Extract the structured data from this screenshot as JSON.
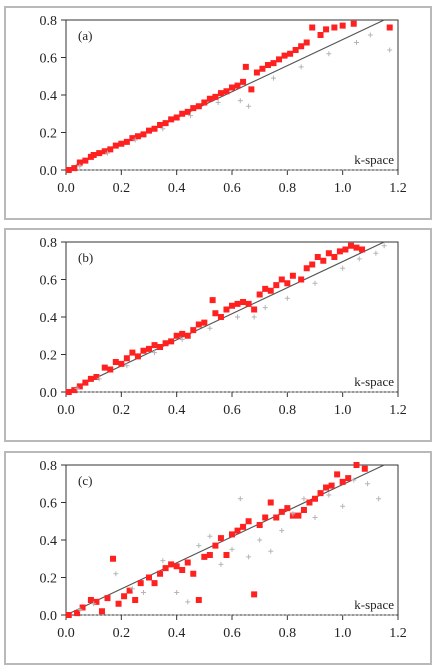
{
  "chart_data": [
    {
      "type": "scatter",
      "panel_label": "(a)",
      "annotation": "k-space",
      "xlim": [
        0.0,
        1.2
      ],
      "ylim": [
        0.0,
        0.8
      ],
      "xticks": [
        0.0,
        0.2,
        0.4,
        0.6,
        0.8,
        1.0,
        1.2
      ],
      "yticks": [
        0.0,
        0.2,
        0.4,
        0.6,
        0.8
      ],
      "reference_line": {
        "x": [
          0.0,
          1.15
        ],
        "y": [
          0.0,
          0.8
        ]
      },
      "colors": {
        "red": "#ff2020",
        "gray": "#b5b5b5",
        "line": "#555555"
      },
      "series": [
        {
          "color": "red",
          "points": [
            [
              0.01,
              0.0
            ],
            [
              0.03,
              0.01
            ],
            [
              0.05,
              0.04
            ],
            [
              0.07,
              0.05
            ],
            [
              0.09,
              0.07
            ],
            [
              0.1,
              0.08
            ],
            [
              0.12,
              0.09
            ],
            [
              0.14,
              0.1
            ],
            [
              0.16,
              0.11
            ],
            [
              0.18,
              0.13
            ],
            [
              0.2,
              0.14
            ],
            [
              0.22,
              0.15
            ],
            [
              0.24,
              0.17
            ],
            [
              0.26,
              0.18
            ],
            [
              0.28,
              0.19
            ],
            [
              0.3,
              0.21
            ],
            [
              0.32,
              0.22
            ],
            [
              0.34,
              0.24
            ],
            [
              0.36,
              0.25
            ],
            [
              0.38,
              0.27
            ],
            [
              0.4,
              0.28
            ],
            [
              0.42,
              0.3
            ],
            [
              0.44,
              0.31
            ],
            [
              0.46,
              0.33
            ],
            [
              0.48,
              0.34
            ],
            [
              0.5,
              0.36
            ],
            [
              0.52,
              0.38
            ],
            [
              0.54,
              0.39
            ],
            [
              0.56,
              0.41
            ],
            [
              0.58,
              0.42
            ],
            [
              0.6,
              0.44
            ],
            [
              0.62,
              0.45
            ],
            [
              0.64,
              0.47
            ],
            [
              0.65,
              0.55
            ],
            [
              0.67,
              0.43
            ],
            [
              0.69,
              0.52
            ],
            [
              0.71,
              0.54
            ],
            [
              0.73,
              0.56
            ],
            [
              0.75,
              0.57
            ],
            [
              0.77,
              0.59
            ],
            [
              0.79,
              0.61
            ],
            [
              0.81,
              0.62
            ],
            [
              0.83,
              0.64
            ],
            [
              0.85,
              0.66
            ],
            [
              0.87,
              0.68
            ],
            [
              0.89,
              0.76
            ],
            [
              0.92,
              0.72
            ],
            [
              0.94,
              0.75
            ],
            [
              0.97,
              0.76
            ],
            [
              1.0,
              0.77
            ],
            [
              1.04,
              0.78
            ],
            [
              1.17,
              0.76
            ]
          ]
        },
        {
          "color": "gray",
          "points": [
            [
              0.05,
              0.02
            ],
            [
              0.15,
              0.09
            ],
            [
              0.25,
              0.16
            ],
            [
              0.35,
              0.22
            ],
            [
              0.45,
              0.29
            ],
            [
              0.55,
              0.36
            ],
            [
              0.63,
              0.37
            ],
            [
              0.66,
              0.34
            ],
            [
              0.75,
              0.49
            ],
            [
              0.85,
              0.55
            ],
            [
              0.95,
              0.62
            ],
            [
              1.05,
              0.68
            ],
            [
              1.1,
              0.72
            ],
            [
              1.17,
              0.64
            ]
          ]
        }
      ]
    },
    {
      "type": "scatter",
      "panel_label": "(b)",
      "annotation": "k-space",
      "xlim": [
        0.0,
        1.2
      ],
      "ylim": [
        0.0,
        0.8
      ],
      "xticks": [
        0.0,
        0.2,
        0.4,
        0.6,
        0.8,
        1.0,
        1.2
      ],
      "yticks": [
        0.0,
        0.2,
        0.4,
        0.6,
        0.8
      ],
      "reference_line": {
        "x": [
          0.0,
          1.15
        ],
        "y": [
          0.0,
          0.8
        ]
      },
      "colors": {
        "red": "#ff2020",
        "gray": "#b5b5b5",
        "line": "#555555"
      },
      "series": [
        {
          "color": "red",
          "points": [
            [
              0.01,
              0.0
            ],
            [
              0.03,
              0.01
            ],
            [
              0.05,
              0.03
            ],
            [
              0.07,
              0.05
            ],
            [
              0.09,
              0.07
            ],
            [
              0.11,
              0.08
            ],
            [
              0.14,
              0.13
            ],
            [
              0.16,
              0.12
            ],
            [
              0.18,
              0.16
            ],
            [
              0.2,
              0.15
            ],
            [
              0.22,
              0.18
            ],
            [
              0.24,
              0.21
            ],
            [
              0.26,
              0.19
            ],
            [
              0.28,
              0.22
            ],
            [
              0.3,
              0.23
            ],
            [
              0.32,
              0.25
            ],
            [
              0.34,
              0.24
            ],
            [
              0.36,
              0.26
            ],
            [
              0.38,
              0.27
            ],
            [
              0.4,
              0.3
            ],
            [
              0.42,
              0.31
            ],
            [
              0.44,
              0.3
            ],
            [
              0.46,
              0.33
            ],
            [
              0.48,
              0.36
            ],
            [
              0.5,
              0.37
            ],
            [
              0.53,
              0.49
            ],
            [
              0.54,
              0.42
            ],
            [
              0.56,
              0.4
            ],
            [
              0.58,
              0.44
            ],
            [
              0.6,
              0.46
            ],
            [
              0.62,
              0.47
            ],
            [
              0.64,
              0.48
            ],
            [
              0.66,
              0.47
            ],
            [
              0.68,
              0.44
            ],
            [
              0.7,
              0.52
            ],
            [
              0.72,
              0.55
            ],
            [
              0.74,
              0.54
            ],
            [
              0.76,
              0.57
            ],
            [
              0.78,
              0.6
            ],
            [
              0.8,
              0.58
            ],
            [
              0.82,
              0.62
            ],
            [
              0.85,
              0.6
            ],
            [
              0.87,
              0.66
            ],
            [
              0.89,
              0.68
            ],
            [
              0.91,
              0.72
            ],
            [
              0.93,
              0.7
            ],
            [
              0.95,
              0.74
            ],
            [
              0.97,
              0.72
            ],
            [
              0.99,
              0.75
            ],
            [
              1.01,
              0.76
            ],
            [
              1.03,
              0.78
            ],
            [
              1.05,
              0.77
            ],
            [
              1.07,
              0.76
            ]
          ]
        },
        {
          "color": "gray",
          "points": [
            [
              0.04,
              0.02
            ],
            [
              0.12,
              0.07
            ],
            [
              0.22,
              0.14
            ],
            [
              0.32,
              0.21
            ],
            [
              0.42,
              0.28
            ],
            [
              0.52,
              0.34
            ],
            [
              0.62,
              0.4
            ],
            [
              0.68,
              0.4
            ],
            [
              0.72,
              0.45
            ],
            [
              0.8,
              0.5
            ],
            [
              0.9,
              0.58
            ],
            [
              1.0,
              0.66
            ],
            [
              1.06,
              0.71
            ],
            [
              1.12,
              0.74
            ],
            [
              1.15,
              0.78
            ]
          ]
        }
      ]
    },
    {
      "type": "scatter",
      "panel_label": "(c)",
      "annotation": "k-space",
      "xlim": [
        0.0,
        1.2
      ],
      "ylim": [
        0.0,
        0.8
      ],
      "xticks": [
        0.0,
        0.2,
        0.4,
        0.6,
        0.8,
        1.0,
        1.2
      ],
      "yticks": [
        0.0,
        0.2,
        0.4,
        0.6,
        0.8
      ],
      "reference_line": {
        "x": [
          0.0,
          1.15
        ],
        "y": [
          0.0,
          0.8
        ]
      },
      "colors": {
        "red": "#ff2020",
        "gray": "#b5b5b5",
        "line": "#555555"
      },
      "series": [
        {
          "color": "red",
          "points": [
            [
              0.01,
              0.0
            ],
            [
              0.04,
              0.01
            ],
            [
              0.06,
              0.04
            ],
            [
              0.09,
              0.08
            ],
            [
              0.11,
              0.07
            ],
            [
              0.13,
              0.02
            ],
            [
              0.15,
              0.09
            ],
            [
              0.17,
              0.3
            ],
            [
              0.19,
              0.06
            ],
            [
              0.21,
              0.1
            ],
            [
              0.23,
              0.13
            ],
            [
              0.25,
              0.08
            ],
            [
              0.27,
              0.17
            ],
            [
              0.3,
              0.2
            ],
            [
              0.32,
              0.17
            ],
            [
              0.34,
              0.22
            ],
            [
              0.36,
              0.25
            ],
            [
              0.38,
              0.27
            ],
            [
              0.4,
              0.26
            ],
            [
              0.42,
              0.24
            ],
            [
              0.44,
              0.28
            ],
            [
              0.46,
              0.22
            ],
            [
              0.48,
              0.08
            ],
            [
              0.5,
              0.31
            ],
            [
              0.52,
              0.32
            ],
            [
              0.54,
              0.37
            ],
            [
              0.56,
              0.41
            ],
            [
              0.58,
              0.32
            ],
            [
              0.6,
              0.43
            ],
            [
              0.62,
              0.45
            ],
            [
              0.64,
              0.47
            ],
            [
              0.66,
              0.5
            ],
            [
              0.68,
              0.11
            ],
            [
              0.7,
              0.48
            ],
            [
              0.72,
              0.52
            ],
            [
              0.74,
              0.6
            ],
            [
              0.76,
              0.52
            ],
            [
              0.78,
              0.55
            ],
            [
              0.8,
              0.57
            ],
            [
              0.82,
              0.53
            ],
            [
              0.84,
              0.53
            ],
            [
              0.86,
              0.56
            ],
            [
              0.88,
              0.6
            ],
            [
              0.9,
              0.62
            ],
            [
              0.92,
              0.65
            ],
            [
              0.94,
              0.68
            ],
            [
              0.96,
              0.69
            ],
            [
              0.98,
              0.75
            ],
            [
              1.0,
              0.71
            ],
            [
              1.02,
              0.73
            ],
            [
              1.05,
              0.8
            ],
            [
              1.08,
              0.78
            ]
          ]
        },
        {
          "color": "gray",
          "points": [
            [
              0.05,
              0.03
            ],
            [
              0.1,
              0.06
            ],
            [
              0.18,
              0.22
            ],
            [
              0.24,
              0.14
            ],
            [
              0.28,
              0.12
            ],
            [
              0.35,
              0.29
            ],
            [
              0.4,
              0.12
            ],
            [
              0.44,
              0.07
            ],
            [
              0.48,
              0.37
            ],
            [
              0.52,
              0.42
            ],
            [
              0.56,
              0.27
            ],
            [
              0.6,
              0.35
            ],
            [
              0.63,
              0.62
            ],
            [
              0.66,
              0.31
            ],
            [
              0.7,
              0.4
            ],
            [
              0.74,
              0.34
            ],
            [
              0.78,
              0.45
            ],
            [
              0.82,
              0.54
            ],
            [
              0.86,
              0.62
            ],
            [
              0.9,
              0.52
            ],
            [
              0.95,
              0.64
            ],
            [
              1.0,
              0.58
            ],
            [
              1.04,
              0.72
            ],
            [
              1.09,
              0.7
            ],
            [
              1.13,
              0.62
            ]
          ]
        }
      ]
    }
  ]
}
